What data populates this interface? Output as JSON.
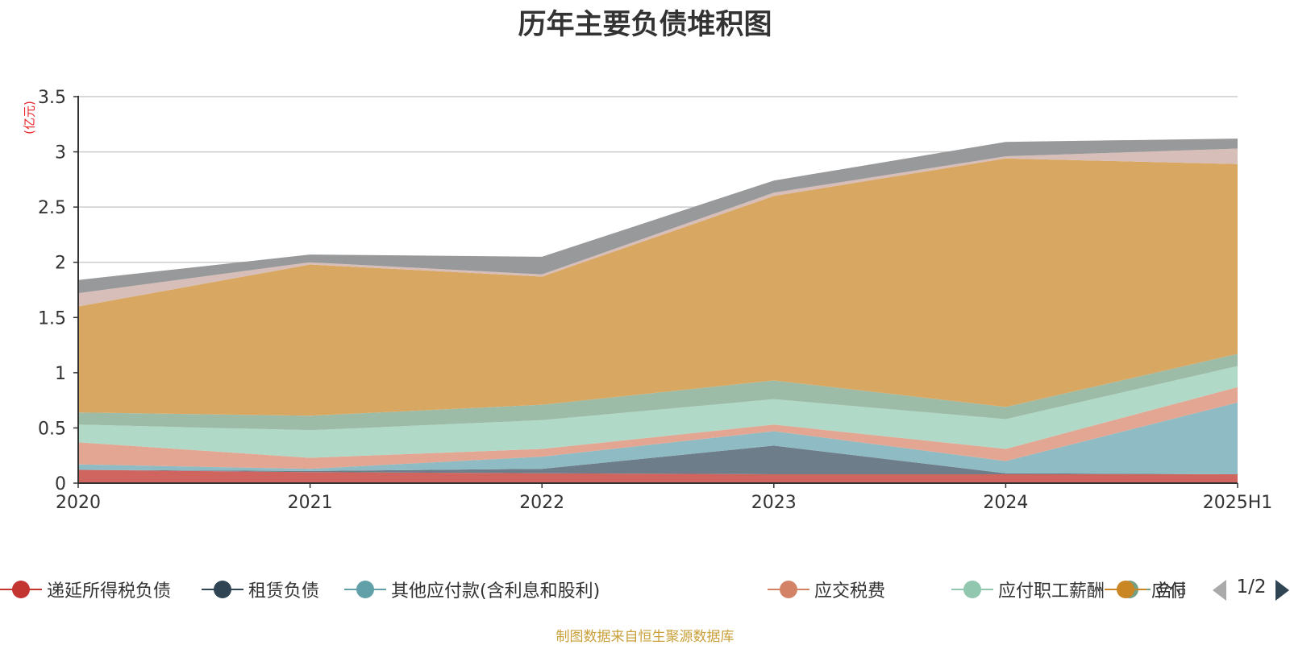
{
  "chart_data": {
    "type": "area",
    "stacked": true,
    "title": "历年主要负债堆积图",
    "ylabel": "(亿元)",
    "categories": [
      "2020",
      "2021",
      "2022",
      "2023",
      "2024",
      "2025H1"
    ],
    "ylim": [
      0,
      3.5
    ],
    "yticks": [
      "0",
      "0.5",
      "1",
      "1.5",
      "2",
      "2.5",
      "3",
      "3.5"
    ],
    "grid": true,
    "series": [
      {
        "name": "递延所得税负债",
        "color": "#d0655f",
        "legend_color": "#c23531",
        "values": [
          0.12,
          0.1,
          0.09,
          0.08,
          0.08,
          0.08
        ]
      },
      {
        "name": "租赁负债",
        "color": "#6e7d8a",
        "legend_color": "#2f4554",
        "values": [
          0.0,
          0.01,
          0.04,
          0.26,
          0.01,
          0.0
        ]
      },
      {
        "name": "其他应付款(含利息和股利)",
        "color": "#8fbcc4",
        "legend_color": "#61a0a8",
        "values": [
          0.05,
          0.02,
          0.11,
          0.13,
          0.11,
          0.65
        ]
      },
      {
        "name": "应交税费",
        "color": "#e2a693",
        "legend_color": "#d48265",
        "values": [
          0.2,
          0.1,
          0.07,
          0.06,
          0.11,
          0.14
        ]
      },
      {
        "name": "应付职工薪酬",
        "color": "#b1d9c7",
        "legend_color": "#91c7ae",
        "values": [
          0.16,
          0.25,
          0.26,
          0.23,
          0.27,
          0.19
        ]
      },
      {
        "name": "合同负债",
        "color": "#9dbca8",
        "legend_color": "#749f83",
        "values": [
          0.11,
          0.13,
          0.14,
          0.17,
          0.11,
          0.11
        ]
      },
      {
        "name": "应付账款",
        "color": "#d8a862",
        "legend_color": "#ca8622",
        "values": [
          0.96,
          1.37,
          1.16,
          1.67,
          2.25,
          1.72
        ]
      },
      {
        "name": "",
        "color": "#d8beb8",
        "legend_color": "#bda29a",
        "values": [
          0.12,
          0.02,
          0.02,
          0.03,
          0.02,
          0.14
        ]
      },
      {
        "name": "",
        "color": "#98999b",
        "legend_color": "#6e7074",
        "values": [
          0.12,
          0.07,
          0.16,
          0.11,
          0.13,
          0.09
        ]
      }
    ],
    "legend_position": "bottom",
    "legend_page": "1/2",
    "source_note": "制图数据来自恒生聚源数据库"
  }
}
